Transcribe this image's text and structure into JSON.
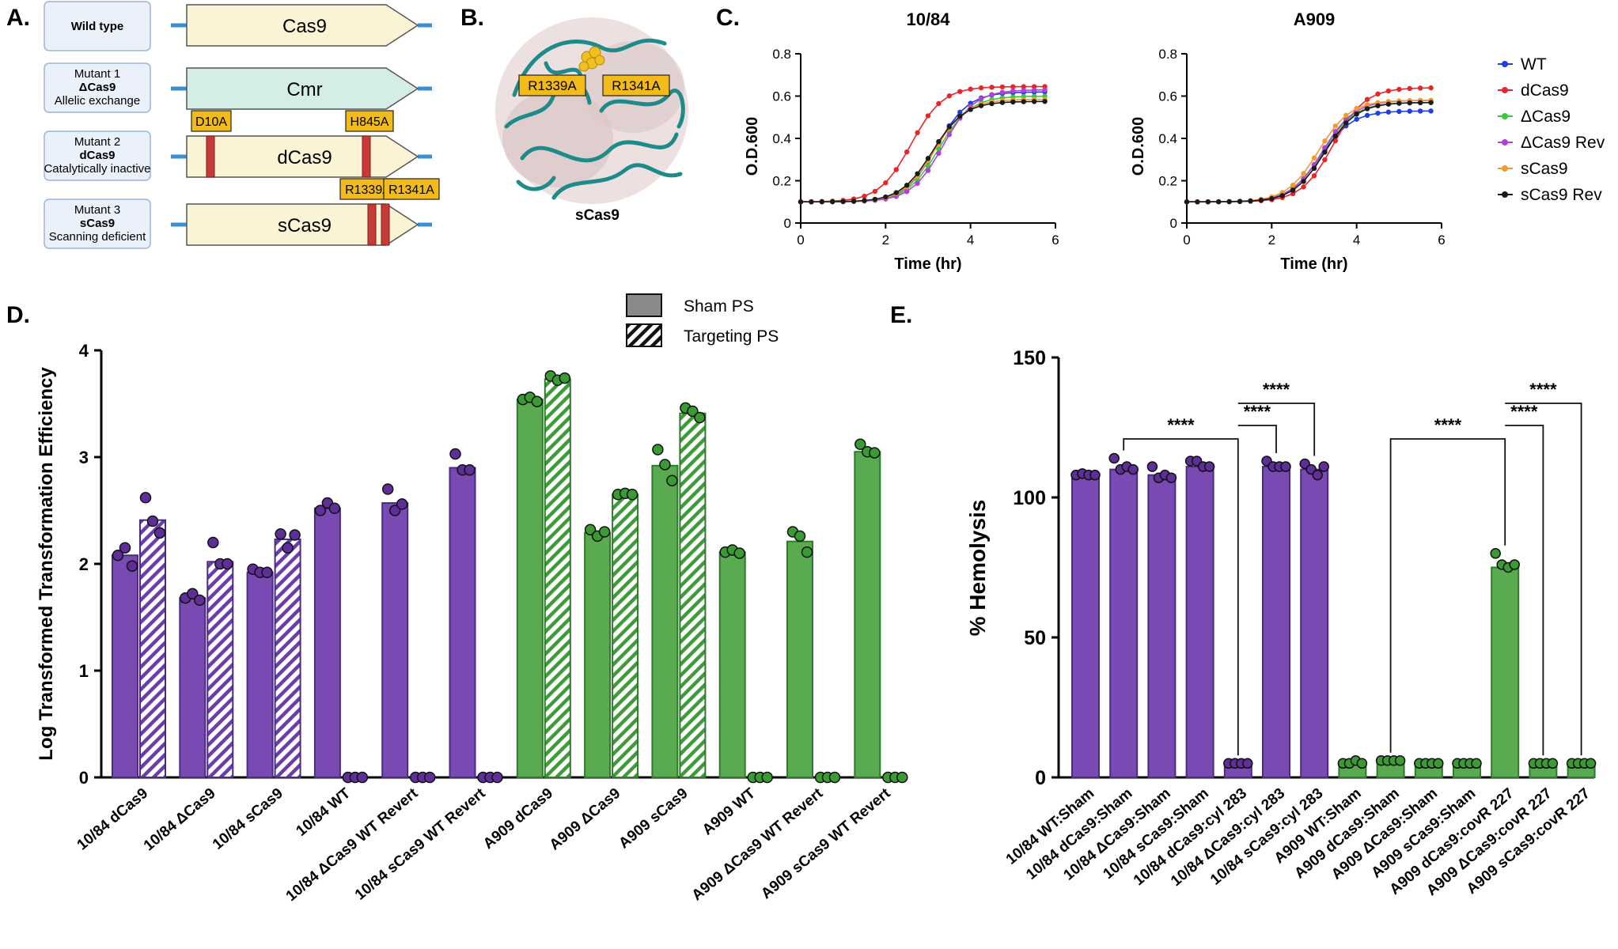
{
  "panel_a": {
    "label": "A.",
    "constructs": [
      {
        "name_lines": [
          "Wild type"
        ],
        "gene": "Cas9",
        "mutations": [],
        "fill": "#fbf4d4",
        "box_fill": "#eaf1fb"
      },
      {
        "name_lines": [
          "Mutant 1",
          "ΔCas9",
          "Allelic exchange"
        ],
        "gene": "Cmr",
        "mutations": [],
        "fill": "#d4ede7",
        "box_fill": "#eaf1fb"
      },
      {
        "name_lines": [
          "Mutant 2",
          "dCas9",
          "Catalytically inactive"
        ],
        "gene": "dCas9",
        "mutations": [
          "D10A",
          "H845A"
        ],
        "fill": "#fbf4d4",
        "box_fill": "#eaf1fb"
      },
      {
        "name_lines": [
          "Mutant 3",
          "sCas9",
          "Scanning deficient"
        ],
        "gene": "sCas9",
        "mutations": [
          "R1339A",
          "R1341A"
        ],
        "fill": "#fbf4d4",
        "box_fill": "#eaf1fb"
      }
    ]
  },
  "panel_b": {
    "label": "B.",
    "caption": "sCas9",
    "residue_labels": [
      "R1339A",
      "R1341A"
    ]
  },
  "panel_c": {
    "label": "C.",
    "legend": [
      "WT",
      "dCas9",
      "ΔCas9",
      "ΔCas9 Rev",
      "sCas9",
      "sCas9 Rev"
    ],
    "colors": [
      "#1f3fe0",
      "#e8262a",
      "#3cc83c",
      "#b040d8",
      "#f29a2e",
      "#1a1a1a"
    ]
  },
  "panel_d": {
    "label": "D.",
    "legend": [
      "Sham PS",
      "Targeting PS"
    ]
  },
  "panel_e": {
    "label": "E.",
    "significance": [
      "****",
      "****",
      "****",
      "****",
      "****",
      "****"
    ]
  },
  "chart_data": [
    {
      "id": "growth-10-84",
      "type": "line",
      "title": "10/84",
      "xlabel": "Time (hr)",
      "ylabel": "O.D.600",
      "xlim": [
        0,
        6
      ],
      "ylim": [
        0,
        0.8
      ],
      "xticks": [
        0,
        2,
        4,
        6
      ],
      "yticks": [
        0,
        0.2,
        0.4,
        0.6,
        0.8
      ],
      "series": [
        {
          "name": "WT",
          "midpoint": 3.2,
          "plateau": 0.62
        },
        {
          "name": "dCas9",
          "midpoint": 2.6,
          "plateau": 0.645
        },
        {
          "name": "ΔCas9",
          "midpoint": 3.25,
          "plateau": 0.6
        },
        {
          "name": "ΔCas9 Rev",
          "midpoint": 3.35,
          "plateau": 0.63
        },
        {
          "name": "sCas9",
          "midpoint": 3.15,
          "plateau": 0.585
        },
        {
          "name": "sCas9 Rev",
          "midpoint": 3.1,
          "plateau": 0.575
        }
      ]
    },
    {
      "id": "growth-A909",
      "type": "line",
      "title": "A909",
      "xlabel": "Time (hr)",
      "ylabel": "O.D.600",
      "xlim": [
        0,
        6
      ],
      "ylim": [
        0,
        0.8
      ],
      "xticks": [
        0,
        2,
        4,
        6
      ],
      "yticks": [
        0,
        0.2,
        0.4,
        0.6,
        0.8
      ],
      "series": [
        {
          "name": "WT",
          "midpoint": 3.15,
          "plateau": 0.53
        },
        {
          "name": "dCas9",
          "midpoint": 3.45,
          "plateau": 0.64
        },
        {
          "name": "ΔCas9",
          "midpoint": 3.2,
          "plateau": 0.57
        },
        {
          "name": "ΔCas9 Rev",
          "midpoint": 3.2,
          "plateau": 0.58
        },
        {
          "name": "sCas9",
          "midpoint": 3.1,
          "plateau": 0.58
        },
        {
          "name": "sCas9 Rev",
          "midpoint": 3.25,
          "plateau": 0.57
        }
      ]
    },
    {
      "id": "transformation",
      "type": "bar",
      "ylabel": "Log Transformed Transformation Efficiency",
      "ylim": [
        0,
        4
      ],
      "yticks": [
        0,
        1,
        2,
        3,
        4
      ],
      "categories": [
        "10/84 dCas9",
        "10/84 ΔCas9",
        "10/84 sCas9",
        "10/84 WT",
        "10/84 ΔCas9 WT Revert",
        "10/84 sCas9 WT Revert",
        "A909 dCas9",
        "A909 ΔCas9",
        "A909 sCas9",
        "A909 WT",
        "A909 ΔCas9 WT Revert",
        "A909 sCas9 WT Revert"
      ],
      "strain": [
        "10/84",
        "10/84",
        "10/84",
        "10/84",
        "10/84",
        "10/84",
        "A909",
        "A909",
        "A909",
        "A909",
        "A909",
        "A909"
      ],
      "series": [
        {
          "name": "Sham PS",
          "values": [
            2.08,
            1.68,
            1.92,
            2.52,
            2.57,
            2.9,
            3.54,
            2.29,
            2.92,
            2.11,
            2.21,
            3.05
          ],
          "points": [
            [
              2.08,
              2.15,
              1.98
            ],
            [
              1.68,
              1.72,
              1.66
            ],
            [
              1.95,
              1.92,
              1.92
            ],
            [
              2.5,
              2.57,
              2.52
            ],
            [
              2.7,
              2.5,
              2.56
            ],
            [
              3.03,
              2.88,
              2.88
            ],
            [
              3.54,
              3.56,
              3.52
            ],
            [
              2.32,
              2.26,
              2.3
            ],
            [
              3.07,
              2.93,
              2.78
            ],
            [
              2.11,
              2.13,
              2.1
            ],
            [
              2.3,
              2.26,
              2.11
            ],
            [
              3.12,
              3.05,
              3.04
            ]
          ]
        },
        {
          "name": "Targeting PS",
          "values": [
            2.41,
            2.02,
            2.23,
            0,
            0,
            0,
            3.73,
            2.65,
            3.41,
            0,
            0,
            0
          ],
          "points": [
            [
              2.62,
              2.4,
              2.29
            ],
            [
              2.2,
              2.0,
              2.0
            ],
            [
              2.28,
              2.15,
              2.27
            ],
            [
              0,
              0,
              0
            ],
            [
              0,
              0,
              0
            ],
            [
              0,
              0,
              0
            ],
            [
              3.76,
              3.72,
              3.74
            ],
            [
              2.65,
              2.66,
              2.65
            ],
            [
              3.46,
              3.43,
              3.37
            ],
            [
              0,
              0,
              0
            ],
            [
              0,
              0,
              0
            ],
            [
              0,
              0,
              0
            ]
          ]
        }
      ]
    },
    {
      "id": "hemolysis",
      "type": "bar",
      "ylabel": "% Hemolysis",
      "ylim": [
        0,
        150
      ],
      "yticks": [
        0,
        50,
        100,
        150
      ],
      "categories": [
        "10/84 WT:Sham",
        "10/84 dCas9:Sham",
        "10/84 ΔCas9:Sham",
        "10/84 sCas9:Sham",
        "10/84 dCas9:cyl 283",
        "10/84 ΔCas9:cyl 283",
        "10/84 sCas9:cyl 283",
        "A909 WT:Sham",
        "A909 dCas9:Sham",
        "A909 ΔCas9:Sham",
        "A909 sCas9:Sham",
        "A909 dCas9:covR 227",
        "A909 ΔCas9:covR 227",
        "A909 sCas9:covR 227"
      ],
      "strain": [
        "10/84",
        "10/84",
        "10/84",
        "10/84",
        "10/84",
        "10/84",
        "10/84",
        "A909",
        "A909",
        "A909",
        "A909",
        "A909",
        "A909",
        "A909"
      ],
      "values": [
        108,
        110,
        108,
        111,
        5,
        111,
        110,
        5,
        6,
        5,
        5,
        75,
        5,
        5
      ],
      "points": [
        [
          108,
          108.5,
          108,
          108
        ],
        [
          114,
          110,
          111,
          110
        ],
        [
          111,
          107,
          108,
          107
        ],
        [
          113,
          113,
          111,
          111
        ],
        [
          5,
          5,
          5,
          5
        ],
        [
          113,
          111,
          111,
          111
        ],
        [
          112,
          110,
          108,
          111
        ],
        [
          5,
          5,
          6,
          5
        ],
        [
          6,
          6,
          6,
          6
        ],
        [
          5,
          5,
          5,
          5
        ],
        [
          5,
          5,
          5,
          5
        ],
        [
          80,
          76,
          75,
          76
        ],
        [
          5,
          5,
          5,
          5
        ],
        [
          5,
          5,
          5,
          5
        ]
      ],
      "comparisons": [
        {
          "from": 1,
          "to": 4,
          "label": "****"
        },
        {
          "from": 4,
          "to": 5,
          "label": "****"
        },
        {
          "from": 4,
          "to": 6,
          "label": "****"
        },
        {
          "from": 8,
          "to": 11,
          "label": "****"
        },
        {
          "from": 11,
          "to": 12,
          "label": "****"
        },
        {
          "from": 11,
          "to": 13,
          "label": "****"
        }
      ]
    }
  ]
}
